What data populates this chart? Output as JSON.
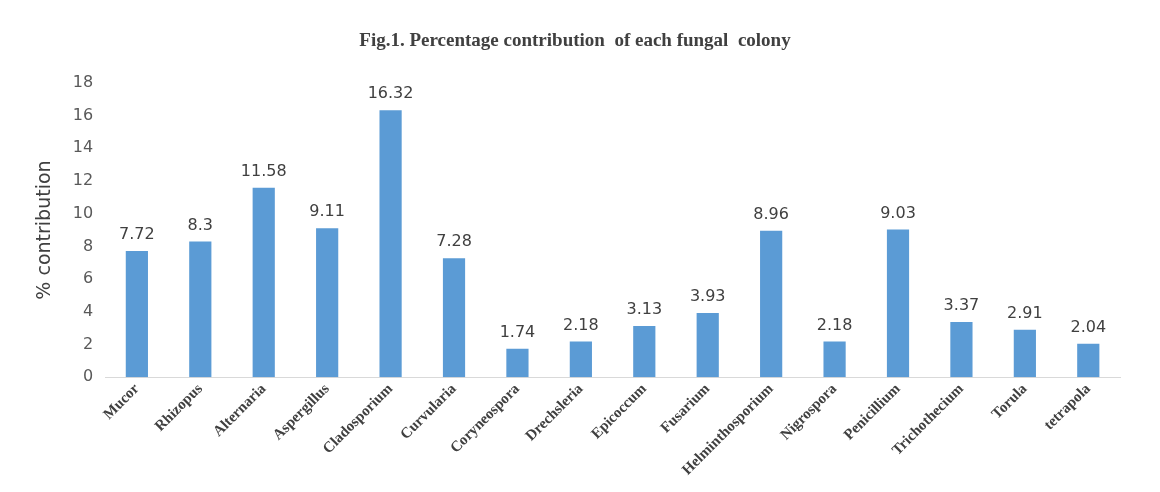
{
  "chart_data": {
    "type": "bar",
    "title": "Fig.1. Percentage contribution  of each fungal  colony",
    "ylabel": "% contribution",
    "categories": [
      "Mucor",
      "Rhizopus",
      "Alternaria",
      "Aspergillus",
      "Cladosporium",
      "Curvularia",
      "Coryneospora",
      "Drechsleria",
      "Epicoccum",
      "Fusarium",
      "Helminthosporium",
      "Nigrospora",
      "Penicillium",
      "Trichothecium",
      "Torula",
      "tetrapola"
    ],
    "values": [
      7.72,
      8.3,
      11.58,
      9.11,
      16.32,
      7.28,
      1.74,
      2.18,
      3.13,
      3.93,
      8.96,
      2.18,
      9.03,
      3.37,
      2.91,
      2.04
    ],
    "color": "#5b9bd5",
    "ylim": [
      0,
      18
    ],
    "yticks": [
      0,
      2,
      4,
      6,
      8,
      10,
      12,
      14,
      16,
      18
    ],
    "grid": false,
    "legend": false,
    "data_labels": true
  }
}
